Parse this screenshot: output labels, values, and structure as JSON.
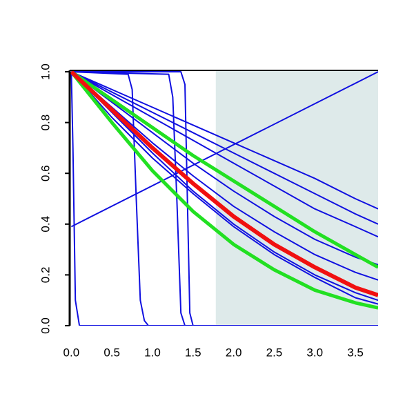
{
  "chart_data": {
    "type": "line",
    "xlim": [
      -0.02,
      3.78
    ],
    "ylim": [
      0,
      1
    ],
    "xticks": [
      {
        "value": 0,
        "label": "0.0"
      },
      0.5,
      {
        "value": 1,
        "label": "1.0"
      },
      1.5,
      {
        "value": 2,
        "label": "2.0"
      },
      2.5,
      {
        "value": 3,
        "label": "3.0"
      },
      3.5
    ],
    "yticks": [
      {
        "value": 0,
        "label": "0.0"
      },
      0.2,
      0.4,
      0.6,
      0.8,
      {
        "value": 1,
        "label": "1.0"
      }
    ],
    "shade_from": 1.78,
    "shade_color": "#deeaea",
    "series": [
      {
        "color": "#1010e0",
        "line_width": 2,
        "x": [
          0,
          0.5,
          1,
          1.5,
          2,
          2.5,
          3,
          3.5,
          3.78
        ],
        "values": [
          1,
          0.93,
          0.86,
          0.79,
          0.72,
          0.65,
          0.58,
          0.5,
          0.46
        ]
      },
      {
        "color": "#1010e0",
        "line_width": 2,
        "x": [
          0,
          0.5,
          1,
          1.5,
          2,
          2.5,
          3,
          3.5,
          3.78
        ],
        "values": [
          1,
          0.92,
          0.84,
          0.76,
          0.68,
          0.6,
          0.52,
          0.44,
          0.4
        ]
      },
      {
        "color": "#1010e0",
        "line_width": 2,
        "x": [
          0,
          0.5,
          1,
          1.5,
          2,
          2.5,
          3,
          3.5,
          3.78
        ],
        "values": [
          1,
          0.91,
          0.82,
          0.73,
          0.64,
          0.55,
          0.46,
          0.39,
          0.35
        ]
      },
      {
        "color": "#1010e0",
        "line_width": 2,
        "x": [
          0,
          0.5,
          1,
          1.5,
          2,
          2.5,
          3,
          3.5,
          3.78
        ],
        "values": [
          1,
          0.88,
          0.76,
          0.64,
          0.53,
          0.43,
          0.34,
          0.27,
          0.24
        ]
      },
      {
        "color": "#1010e0",
        "line_width": 2,
        "x": [
          0,
          0.5,
          1,
          1.5,
          2,
          2.5,
          3,
          3.5,
          3.78
        ],
        "values": [
          1,
          0.86,
          0.72,
          0.59,
          0.47,
          0.37,
          0.28,
          0.21,
          0.18
        ]
      },
      {
        "color": "#1010e0",
        "line_width": 2,
        "x": [
          0,
          0.5,
          1,
          1.5,
          2,
          2.5,
          3,
          3.5,
          3.78
        ],
        "values": [
          1,
          0.84,
          0.68,
          0.53,
          0.4,
          0.29,
          0.2,
          0.13,
          0.1
        ]
      },
      {
        "color": "#1010e0",
        "line_width": 2,
        "x": [
          0,
          0.5,
          1,
          1.5,
          2,
          2.5,
          3,
          3.5,
          3.78
        ],
        "values": [
          1,
          0.82,
          0.66,
          0.52,
          0.39,
          0.28,
          0.19,
          0.11,
          0.085
        ]
      },
      {
        "color": "#1010e0",
        "line_width": 2,
        "x": [
          0,
          3.78
        ],
        "values": [
          0.39,
          1
        ]
      },
      {
        "color": "#1010e0",
        "line_width": 2,
        "x": [
          0,
          0.02,
          0.05,
          0.1,
          3.78
        ],
        "values": [
          1,
          0.7,
          0.1,
          0,
          0
        ]
      },
      {
        "color": "#1010e0",
        "line_width": 2,
        "x": [
          0,
          0.7,
          0.75,
          0.8,
          0.85,
          0.9,
          0.95,
          3.78
        ],
        "values": [
          1,
          0.99,
          0.93,
          0.5,
          0.1,
          0.02,
          0,
          0
        ]
      },
      {
        "color": "#1010e0",
        "line_width": 2,
        "x": [
          0,
          1.2,
          1.25,
          1.3,
          1.35,
          1.4,
          3.78
        ],
        "values": [
          1,
          0.99,
          0.9,
          0.5,
          0.05,
          0,
          0
        ]
      },
      {
        "color": "#1010e0",
        "line_width": 2,
        "x": [
          0,
          1.35,
          1.4,
          1.43,
          1.46,
          1.5,
          3.78
        ],
        "values": [
          1,
          1,
          0.95,
          0.5,
          0.05,
          0,
          0
        ]
      },
      {
        "color": "#22e022",
        "line_width": 5,
        "x": [
          0,
          0.5,
          1,
          1.5,
          2,
          2.5,
          3,
          3.5,
          3.78
        ],
        "values": [
          1,
          0.89,
          0.78,
          0.67,
          0.57,
          0.47,
          0.37,
          0.28,
          0.23
        ]
      },
      {
        "color": "#22e022",
        "line_width": 5,
        "x": [
          0,
          0.5,
          1,
          1.5,
          2,
          2.5,
          3,
          3.5,
          3.78
        ],
        "values": [
          1,
          0.8,
          0.61,
          0.45,
          0.32,
          0.22,
          0.14,
          0.09,
          0.07
        ]
      },
      {
        "color": "#f01010",
        "line_width": 6,
        "x": [
          0,
          0.5,
          1,
          1.5,
          2,
          2.5,
          3,
          3.5,
          3.78
        ],
        "values": [
          1,
          0.85,
          0.7,
          0.56,
          0.43,
          0.32,
          0.23,
          0.15,
          0.12
        ]
      }
    ]
  }
}
